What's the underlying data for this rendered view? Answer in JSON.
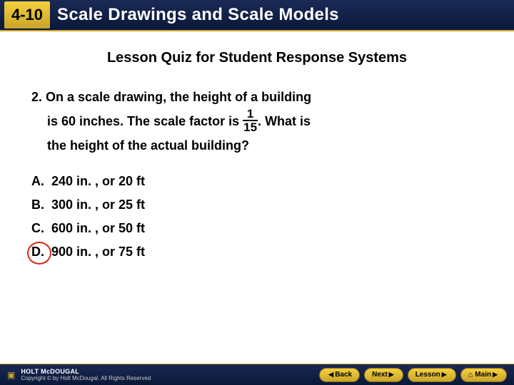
{
  "header": {
    "chapter_code": "4-10",
    "chapter_title": "Scale Drawings and Scale Models",
    "badge_bg_top": "#f4d03f",
    "badge_bg_bottom": "#c9a52a",
    "bar_bg_top": "#1a2a55",
    "bar_bg_bottom": "#0a1838",
    "title_color": "#ffffff"
  },
  "subheading": "Lesson Quiz for Student Response Systems",
  "question": {
    "number": "2.",
    "line1_after_number": "On a scale drawing, the height of a building",
    "line2_before_frac": "is 60 inches. The scale factor is ",
    "fraction": {
      "num": "1",
      "den": "15"
    },
    "line2_after_frac": ". What is",
    "line3": "the height of the actual building?"
  },
  "answers": [
    {
      "letter": "A.",
      "text": "240 in. , or 20 ft",
      "circled": false
    },
    {
      "letter": "B.",
      "text": "300 in. , or 25 ft",
      "circled": false
    },
    {
      "letter": "C.",
      "text": "600 in. , or 50 ft",
      "circled": false
    },
    {
      "letter": "D.",
      "text": "900 in. , or 75 ft",
      "circled": true
    }
  ],
  "circle_color": "#d62a1a",
  "footer": {
    "brand": "HOLT McDOUGAL",
    "copyright": "Copyright © by Holt McDougal. All Rights Reserved",
    "nav": {
      "back": "Back",
      "next": "Next",
      "lesson": "Lesson",
      "main": "Main"
    }
  }
}
